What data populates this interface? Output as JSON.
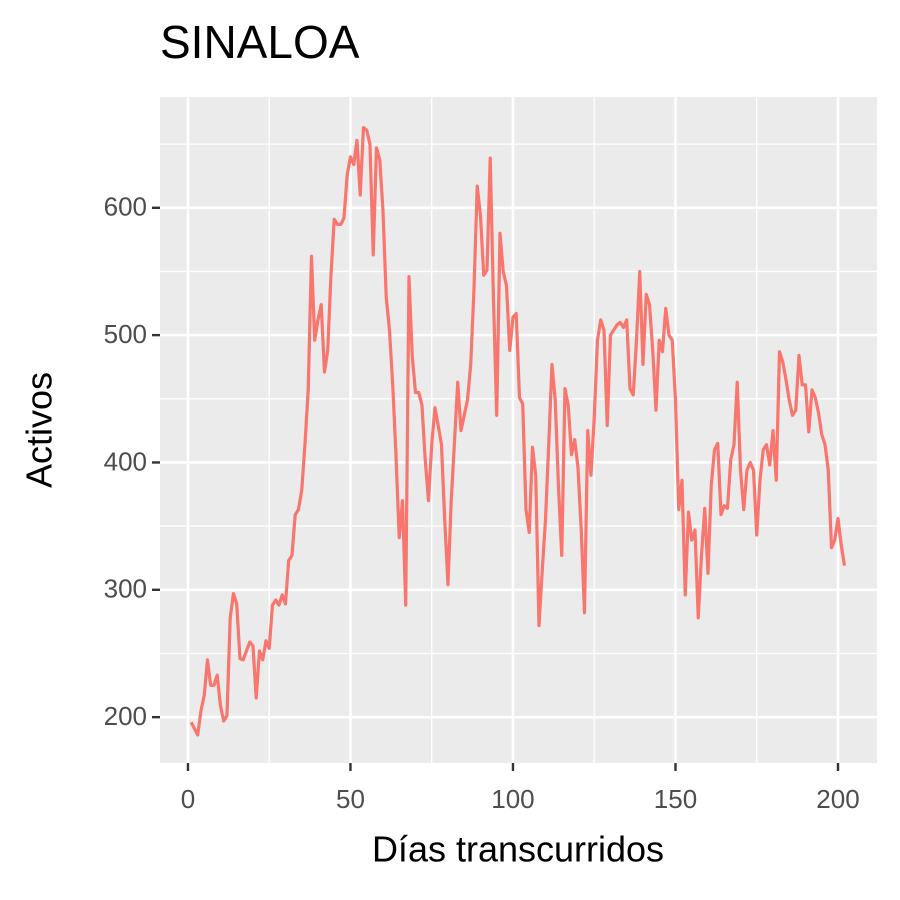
{
  "chart_data": {
    "type": "line",
    "title": "SINALOA",
    "x_label": "Días transcurridos",
    "y_label": "Activos",
    "color": "#f8766d",
    "grid": true,
    "xlim": [
      -8.6,
      212
    ],
    "ylim": [
      164,
      687
    ],
    "xticks": [
      0,
      50,
      100,
      150,
      200
    ],
    "yticks": [
      200,
      300,
      400,
      500,
      600
    ],
    "xminor": [
      25,
      75,
      125,
      175
    ],
    "yminor": [
      250,
      350,
      450,
      550,
      650
    ],
    "x": [
      1,
      2,
      3,
      4,
      5,
      6,
      7,
      8,
      9,
      10,
      11,
      12,
      13,
      14,
      15,
      16,
      17,
      18,
      19,
      20,
      21,
      22,
      23,
      24,
      25,
      26,
      27,
      28,
      29,
      30,
      31,
      32,
      33,
      34,
      35,
      36,
      37,
      38,
      39,
      40,
      41,
      42,
      43,
      44,
      45,
      46,
      47,
      48,
      49,
      50,
      51,
      52,
      53,
      54,
      55,
      56,
      57,
      58,
      59,
      60,
      61,
      62,
      63,
      64,
      65,
      66,
      67,
      68,
      69,
      70,
      71,
      72,
      73,
      74,
      75,
      76,
      77,
      78,
      79,
      80,
      81,
      82,
      83,
      84,
      85,
      86,
      87,
      88,
      89,
      90,
      91,
      92,
      93,
      94,
      95,
      96,
      97,
      98,
      99,
      100,
      101,
      102,
      103,
      104,
      105,
      106,
      107,
      108,
      109,
      110,
      111,
      112,
      113,
      114,
      115,
      116,
      117,
      118,
      119,
      120,
      121,
      122,
      123,
      124,
      125,
      126,
      127,
      128,
      129,
      130,
      131,
      132,
      133,
      134,
      135,
      136,
      137,
      138,
      139,
      140,
      141,
      142,
      143,
      144,
      145,
      146,
      147,
      148,
      149,
      150,
      151,
      152,
      153,
      154,
      155,
      156,
      157,
      158,
      159,
      160,
      161,
      162,
      163,
      164,
      165,
      166,
      167,
      168,
      169,
      170,
      171,
      172,
      173,
      174,
      175,
      176,
      177,
      178,
      179,
      180,
      181,
      182,
      183,
      184,
      185,
      186,
      187,
      188,
      189,
      190,
      191,
      192,
      193,
      194,
      195,
      196,
      197,
      198,
      199,
      200,
      201,
      202
    ],
    "values": [
      196,
      191,
      186,
      205,
      217,
      245,
      225,
      225,
      233,
      209,
      197,
      201,
      278,
      297,
      289,
      246,
      245,
      252,
      259,
      256,
      215,
      252,
      245,
      260,
      254,
      288,
      292,
      288,
      296,
      289,
      323,
      327,
      359,
      363,
      378,
      414,
      457,
      562,
      496,
      512,
      524,
      471,
      488,
      547,
      591,
      587,
      587,
      592,
      626,
      640,
      634,
      653,
      610,
      663,
      661,
      650,
      563,
      647,
      638,
      598,
      530,
      504,
      461,
      406,
      341,
      370,
      288,
      546,
      484,
      455,
      455,
      445,
      402,
      370,
      414,
      443,
      429,
      414,
      355,
      304,
      370,
      416,
      463,
      425,
      437,
      449,
      477,
      536,
      617,
      594,
      547,
      551,
      639,
      528,
      437,
      580,
      550,
      539,
      488,
      514,
      517,
      451,
      446,
      363,
      345,
      412,
      390,
      272,
      315,
      355,
      414,
      477,
      449,
      381,
      327,
      458,
      445,
      406,
      418,
      396,
      347,
      282,
      425,
      390,
      435,
      496,
      512,
      504,
      429,
      500,
      504,
      508,
      510,
      506,
      512,
      458,
      453,
      496,
      550,
      477,
      532,
      524,
      488,
      441,
      496,
      487,
      521,
      500,
      496,
      449,
      363,
      386,
      296,
      361,
      339,
      347,
      278,
      327,
      364,
      313,
      382,
      410,
      415,
      359,
      366,
      364,
      402,
      414,
      463,
      394,
      363,
      394,
      400,
      394,
      343,
      386,
      410,
      414,
      398,
      425,
      386,
      487,
      479,
      465,
      449,
      437,
      441,
      484,
      461,
      461,
      424,
      457,
      451,
      439,
      422,
      414,
      394,
      333,
      339,
      356,
      335,
      319
    ]
  }
}
